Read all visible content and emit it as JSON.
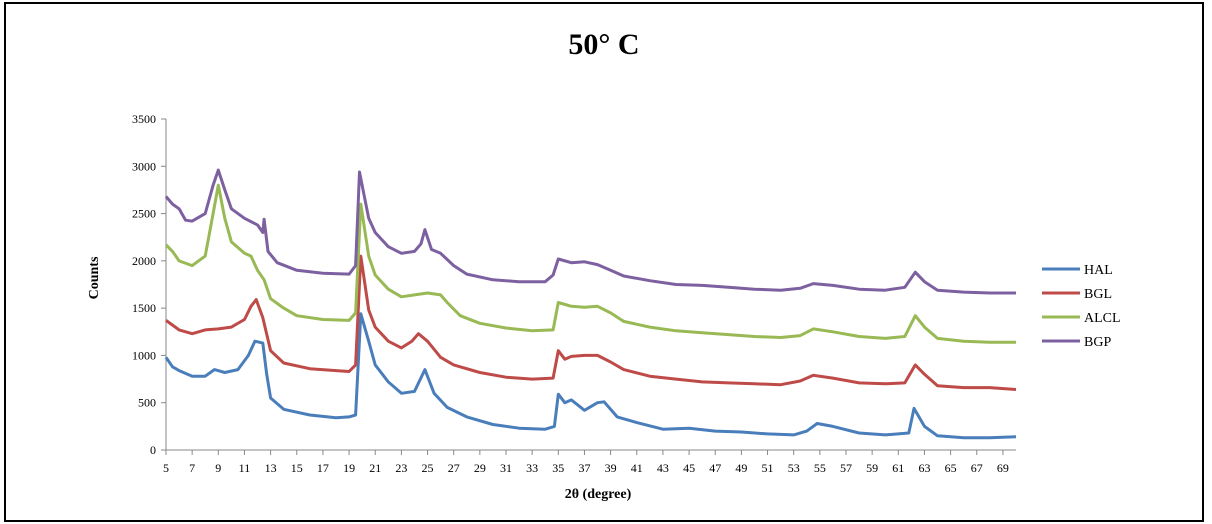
{
  "chart_data": {
    "type": "line",
    "title": "50° C",
    "xlabel": "2θ (degree)",
    "ylabel": "Counts",
    "xlim": [
      5,
      70
    ],
    "ylim": [
      0,
      3500
    ],
    "x_ticks": [
      5,
      7,
      9,
      11,
      13,
      15,
      17,
      19,
      21,
      23,
      25,
      27,
      29,
      31,
      33,
      35,
      37,
      39,
      41,
      43,
      45,
      47,
      49,
      51,
      53,
      55,
      57,
      59,
      61,
      63,
      65,
      67,
      69
    ],
    "y_ticks": [
      0,
      500,
      1000,
      1500,
      2000,
      2500,
      3000,
      3500
    ],
    "legend_position": "right",
    "grid": false,
    "series": [
      {
        "name": "HAL",
        "color": "#4a7ebb",
        "points": [
          [
            5,
            980
          ],
          [
            5.5,
            880
          ],
          [
            6,
            840
          ],
          [
            7,
            780
          ],
          [
            8,
            780
          ],
          [
            8.7,
            850
          ],
          [
            9.5,
            820
          ],
          [
            10.5,
            850
          ],
          [
            11.3,
            1000
          ],
          [
            11.8,
            1150
          ],
          [
            12.4,
            1130
          ],
          [
            12.7,
            800
          ],
          [
            13,
            550
          ],
          [
            14,
            430
          ],
          [
            16,
            370
          ],
          [
            18,
            340
          ],
          [
            19,
            350
          ],
          [
            19.5,
            370
          ],
          [
            19.9,
            1440
          ],
          [
            20.5,
            1150
          ],
          [
            21,
            900
          ],
          [
            22,
            720
          ],
          [
            23,
            600
          ],
          [
            24,
            620
          ],
          [
            24.8,
            850
          ],
          [
            25.5,
            600
          ],
          [
            26.5,
            450
          ],
          [
            28,
            350
          ],
          [
            30,
            270
          ],
          [
            32,
            230
          ],
          [
            34,
            220
          ],
          [
            34.7,
            250
          ],
          [
            35,
            590
          ],
          [
            35.5,
            500
          ],
          [
            36,
            530
          ],
          [
            37,
            420
          ],
          [
            38,
            500
          ],
          [
            38.5,
            510
          ],
          [
            39.5,
            350
          ],
          [
            41,
            290
          ],
          [
            43,
            220
          ],
          [
            45,
            230
          ],
          [
            47,
            200
          ],
          [
            49,
            190
          ],
          [
            51,
            170
          ],
          [
            53,
            160
          ],
          [
            54,
            200
          ],
          [
            54.8,
            280
          ],
          [
            56,
            250
          ],
          [
            58,
            180
          ],
          [
            60,
            160
          ],
          [
            61.8,
            180
          ],
          [
            62.2,
            440
          ],
          [
            63,
            250
          ],
          [
            64,
            150
          ],
          [
            66,
            130
          ],
          [
            68,
            130
          ],
          [
            70,
            140
          ]
        ]
      },
      {
        "name": "BGL",
        "color": "#be4b48",
        "points": [
          [
            5,
            1370
          ],
          [
            6,
            1270
          ],
          [
            7,
            1230
          ],
          [
            8,
            1270
          ],
          [
            9,
            1280
          ],
          [
            10,
            1300
          ],
          [
            11,
            1380
          ],
          [
            11.5,
            1520
          ],
          [
            11.9,
            1590
          ],
          [
            12.4,
            1400
          ],
          [
            13,
            1050
          ],
          [
            14,
            920
          ],
          [
            16,
            860
          ],
          [
            18,
            840
          ],
          [
            19,
            830
          ],
          [
            19.5,
            900
          ],
          [
            19.9,
            2050
          ],
          [
            20.5,
            1480
          ],
          [
            21,
            1300
          ],
          [
            22,
            1150
          ],
          [
            23,
            1080
          ],
          [
            23.8,
            1150
          ],
          [
            24.3,
            1230
          ],
          [
            25,
            1150
          ],
          [
            26,
            980
          ],
          [
            27,
            900
          ],
          [
            29,
            820
          ],
          [
            31,
            770
          ],
          [
            33,
            750
          ],
          [
            34.6,
            760
          ],
          [
            35,
            1050
          ],
          [
            35.5,
            960
          ],
          [
            36,
            990
          ],
          [
            37,
            1000
          ],
          [
            38,
            1000
          ],
          [
            39,
            930
          ],
          [
            40,
            850
          ],
          [
            42,
            780
          ],
          [
            44,
            750
          ],
          [
            46,
            720
          ],
          [
            48,
            710
          ],
          [
            50,
            700
          ],
          [
            52,
            690
          ],
          [
            53.5,
            730
          ],
          [
            54.5,
            790
          ],
          [
            56,
            760
          ],
          [
            58,
            710
          ],
          [
            60,
            700
          ],
          [
            61.5,
            710
          ],
          [
            62.3,
            900
          ],
          [
            63,
            800
          ],
          [
            64,
            680
          ],
          [
            66,
            660
          ],
          [
            68,
            660
          ],
          [
            70,
            640
          ]
        ]
      },
      {
        "name": "ALCL",
        "color": "#98b954",
        "points": [
          [
            5,
            2170
          ],
          [
            5.5,
            2100
          ],
          [
            6,
            2000
          ],
          [
            7,
            1950
          ],
          [
            8,
            2050
          ],
          [
            8.6,
            2500
          ],
          [
            9,
            2800
          ],
          [
            9.5,
            2450
          ],
          [
            10,
            2200
          ],
          [
            11,
            2080
          ],
          [
            11.5,
            2050
          ],
          [
            12,
            1900
          ],
          [
            12.5,
            1800
          ],
          [
            13,
            1600
          ],
          [
            14,
            1500
          ],
          [
            15,
            1420
          ],
          [
            17,
            1380
          ],
          [
            19,
            1370
          ],
          [
            19.5,
            1450
          ],
          [
            19.9,
            2600
          ],
          [
            20.5,
            2050
          ],
          [
            21,
            1850
          ],
          [
            22,
            1700
          ],
          [
            23,
            1620
          ],
          [
            24,
            1640
          ],
          [
            25,
            1660
          ],
          [
            26,
            1640
          ],
          [
            26.5,
            1560
          ],
          [
            27.5,
            1420
          ],
          [
            29,
            1340
          ],
          [
            31,
            1290
          ],
          [
            33,
            1260
          ],
          [
            34.6,
            1270
          ],
          [
            35,
            1560
          ],
          [
            36,
            1520
          ],
          [
            37,
            1510
          ],
          [
            38,
            1520
          ],
          [
            39,
            1450
          ],
          [
            40,
            1360
          ],
          [
            42,
            1300
          ],
          [
            44,
            1260
          ],
          [
            46,
            1240
          ],
          [
            48,
            1220
          ],
          [
            50,
            1200
          ],
          [
            52,
            1190
          ],
          [
            53.5,
            1210
          ],
          [
            54.5,
            1280
          ],
          [
            56,
            1250
          ],
          [
            58,
            1200
          ],
          [
            60,
            1180
          ],
          [
            61.5,
            1200
          ],
          [
            62.3,
            1420
          ],
          [
            63,
            1300
          ],
          [
            64,
            1180
          ],
          [
            66,
            1150
          ],
          [
            68,
            1140
          ],
          [
            70,
            1140
          ]
        ]
      },
      {
        "name": "BGP",
        "color": "#7d60a0",
        "points": [
          [
            5,
            2680
          ],
          [
            5.5,
            2600
          ],
          [
            6,
            2550
          ],
          [
            6.5,
            2430
          ],
          [
            7,
            2420
          ],
          [
            8,
            2500
          ],
          [
            8.6,
            2800
          ],
          [
            9,
            2960
          ],
          [
            9.5,
            2750
          ],
          [
            10,
            2550
          ],
          [
            11,
            2450
          ],
          [
            12,
            2380
          ],
          [
            12.4,
            2300
          ],
          [
            12.5,
            2440
          ],
          [
            12.8,
            2100
          ],
          [
            13.5,
            1980
          ],
          [
            15,
            1900
          ],
          [
            17,
            1870
          ],
          [
            19,
            1860
          ],
          [
            19.5,
            1950
          ],
          [
            19.8,
            2940
          ],
          [
            20.5,
            2450
          ],
          [
            21,
            2300
          ],
          [
            22,
            2150
          ],
          [
            23,
            2080
          ],
          [
            24,
            2100
          ],
          [
            24.5,
            2180
          ],
          [
            24.8,
            2330
          ],
          [
            25.3,
            2120
          ],
          [
            26,
            2080
          ],
          [
            27,
            1950
          ],
          [
            28,
            1860
          ],
          [
            30,
            1800
          ],
          [
            32,
            1780
          ],
          [
            34,
            1780
          ],
          [
            34.6,
            1850
          ],
          [
            35,
            2020
          ],
          [
            36,
            1980
          ],
          [
            37,
            1990
          ],
          [
            38,
            1960
          ],
          [
            39,
            1900
          ],
          [
            40,
            1840
          ],
          [
            42,
            1790
          ],
          [
            44,
            1750
          ],
          [
            46,
            1740
          ],
          [
            48,
            1720
          ],
          [
            50,
            1700
          ],
          [
            52,
            1690
          ],
          [
            53.5,
            1710
          ],
          [
            54.5,
            1760
          ],
          [
            56,
            1740
          ],
          [
            58,
            1700
          ],
          [
            60,
            1690
          ],
          [
            61.5,
            1720
          ],
          [
            62.3,
            1880
          ],
          [
            63,
            1780
          ],
          [
            64,
            1690
          ],
          [
            66,
            1670
          ],
          [
            68,
            1660
          ],
          [
            70,
            1660
          ]
        ]
      }
    ]
  }
}
